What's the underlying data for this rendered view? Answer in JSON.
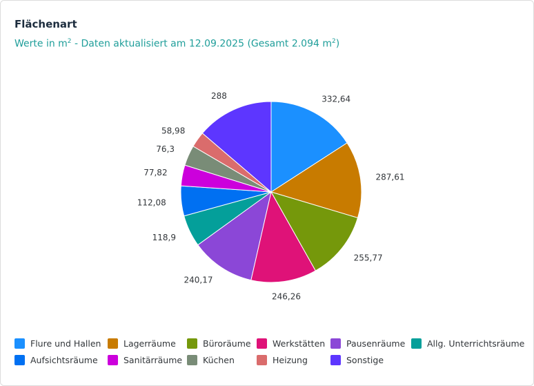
{
  "card": {
    "title": "Flächenart",
    "subtitle_prefix": "Werte in m",
    "subtitle_sup": "2",
    "subtitle_mid": " - Daten aktualisiert am  12.09.2025 (Gesamt 2.094 m",
    "subtitle_sup2": "2",
    "subtitle_suffix": ")"
  },
  "chart_data": {
    "type": "pie",
    "title": "Flächenart",
    "unit": "m²",
    "start_angle_deg": 0,
    "direction": "clockwise",
    "slices": [
      {
        "name": "Flure und Hallen",
        "value": 332.64,
        "label": "332,64",
        "color": "#1b90ff"
      },
      {
        "name": "Lagerräume",
        "value": 287.61,
        "label": "287,61",
        "color": "#c87b00"
      },
      {
        "name": "Büroräume",
        "value": 255.77,
        "label": "255,77",
        "color": "#75980b"
      },
      {
        "name": "Werkstätten",
        "value": 246.26,
        "label": "246,26",
        "color": "#df1278"
      },
      {
        "name": "Pausenräume",
        "value": 240.17,
        "label": "240,17",
        "color": "#8b47d7"
      },
      {
        "name": "Allg. Unterrichtsräume",
        "value": 118.9,
        "label": "118,9",
        "color": "#049f9a"
      },
      {
        "name": "Aufsichtsräume",
        "value": 112.08,
        "label": "112,08",
        "color": "#0070f2"
      },
      {
        "name": "Sanitärräume",
        "value": 77.82,
        "label": "77,82",
        "color": "#cc00dc"
      },
      {
        "name": "Küchen",
        "value": 76.3,
        "label": "76,3",
        "color": "#798c77"
      },
      {
        "name": "Heizung",
        "value": 58.98,
        "label": "58,98",
        "color": "#da6c6c"
      },
      {
        "name": "Sonstige",
        "value": 288,
        "label": "288",
        "color": "#5d36ff"
      }
    ],
    "legend_position": "bottom"
  }
}
